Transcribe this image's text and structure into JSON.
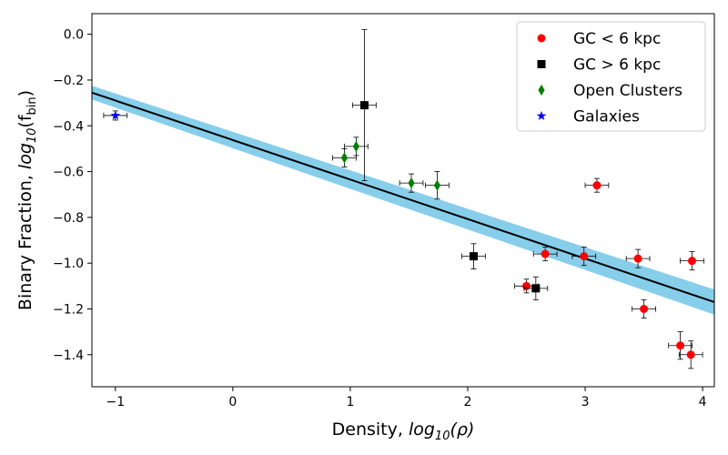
{
  "chart_data": {
    "type": "scatter",
    "xlabel": {
      "text": "Density, ",
      "math": "log",
      "sub": "10",
      "tail": "(ρ)"
    },
    "ylabel": {
      "text": "Binary Fraction, ",
      "math": "log",
      "sub": "10",
      "tail1": "(f",
      "sub2": "bin",
      "tail2": ")"
    },
    "xlim": [
      -1.2,
      4.1
    ],
    "ylim": [
      -1.54,
      0.09
    ],
    "xticks": [
      -1,
      0,
      1,
      2,
      3,
      4
    ],
    "xtick_labels": [
      "−1",
      "0",
      "1",
      "2",
      "3",
      "4"
    ],
    "yticks": [
      0.0,
      -0.2,
      -0.4,
      -0.6,
      -0.8,
      -1.0,
      -1.2,
      -1.4
    ],
    "ytick_labels": [
      "0.0",
      "−0.2",
      "−0.4",
      "−0.6",
      "−0.8",
      "−1.0",
      "−1.2",
      "−1.4"
    ],
    "fit_line": {
      "x": [
        -1.2,
        4.1
      ],
      "y": [
        -0.255,
        -1.17
      ],
      "color": "#000000"
    },
    "fit_band": {
      "upper": [
        -0.225,
        -1.115
      ],
      "lower": [
        -0.285,
        -1.225
      ],
      "color": "#87CEEB"
    },
    "legend": {
      "position": "top-right"
    },
    "series": [
      {
        "name": "GC < 6 kpc",
        "marker": "circle",
        "color": "#ff0000",
        "points": [
          {
            "x": 2.5,
            "y": -1.1,
            "xerr": 0.1,
            "yerr": 0.03
          },
          {
            "x": 2.66,
            "y": -0.96,
            "xerr": 0.1,
            "yerr": 0.03
          },
          {
            "x": 2.99,
            "y": -0.97,
            "xerr": 0.1,
            "yerr": 0.04
          },
          {
            "x": 3.1,
            "y": -0.66,
            "xerr": 0.1,
            "yerr": 0.03
          },
          {
            "x": 3.45,
            "y": -0.98,
            "xerr": 0.1,
            "yerr": 0.04
          },
          {
            "x": 3.5,
            "y": -1.2,
            "xerr": 0.1,
            "yerr": 0.04
          },
          {
            "x": 3.81,
            "y": -1.36,
            "xerr": 0.1,
            "yerr": 0.06
          },
          {
            "x": 3.9,
            "y": -1.4,
            "xerr": 0.1,
            "yerr": 0.06
          },
          {
            "x": 3.91,
            "y": -0.99,
            "xerr": 0.1,
            "yerr": 0.04
          }
        ]
      },
      {
        "name": "GC > 6 kpc",
        "marker": "square",
        "color": "#000000",
        "points": [
          {
            "x": 1.12,
            "y": -0.31,
            "xerr": 0.1,
            "yerr_up": 0.33,
            "yerr_down": 0.33
          },
          {
            "x": 2.05,
            "y": -0.97,
            "xerr": 0.1,
            "yerr": 0.055
          },
          {
            "x": 2.58,
            "y": -1.11,
            "xerr": 0.1,
            "yerr": 0.05
          }
        ]
      },
      {
        "name": "Open Clusters",
        "marker": "diamond",
        "color": "#008000",
        "points": [
          {
            "x": 0.95,
            "y": -0.54,
            "xerr": 0.1,
            "yerr": 0.04
          },
          {
            "x": 1.05,
            "y": -0.49,
            "xerr": 0.1,
            "yerr": 0.04
          },
          {
            "x": 1.52,
            "y": -0.65,
            "xerr": 0.1,
            "yerr": 0.04
          },
          {
            "x": 1.74,
            "y": -0.66,
            "xerr": 0.1,
            "yerr": 0.06
          }
        ]
      },
      {
        "name": "Galaxies",
        "marker": "star",
        "color": "#0000ff",
        "points": [
          {
            "x": -1.0,
            "y": -0.355,
            "xerr": 0.1,
            "yerr": 0.02
          }
        ]
      }
    ]
  }
}
